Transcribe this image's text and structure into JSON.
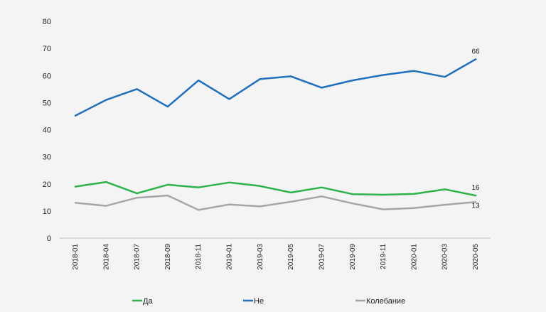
{
  "chart_data": {
    "type": "line",
    "categories": [
      "2018-01",
      "2018-04",
      "2018-07",
      "2018-09",
      "2018-11",
      "2019-01",
      "2019-03",
      "2019-05",
      "2019-07",
      "2019-09",
      "2019-11",
      "2020-01",
      "2020-03",
      "2020-05"
    ],
    "ylim": [
      0,
      80
    ],
    "yticks": [
      0,
      10,
      20,
      30,
      40,
      50,
      60,
      70,
      80
    ],
    "grid": false,
    "legend_position": "bottom",
    "series": [
      {
        "name": "Да",
        "color": "#2db34a",
        "values": [
          19,
          20.7,
          16.5,
          19.7,
          18.7,
          20.5,
          19.2,
          16.8,
          18.7,
          16.2,
          16,
          16.3,
          18,
          15.7
        ],
        "end_label": "16"
      },
      {
        "name": "Не",
        "color": "#1f6fbf",
        "values": [
          45.2,
          51,
          55,
          48.5,
          58.2,
          51.3,
          58.7,
          59.7,
          55.5,
          58.2,
          60.2,
          61.7,
          59.5,
          66
        ],
        "end_label": "66"
      },
      {
        "name": "Колебание",
        "color": "#a6a6a6",
        "values": [
          13,
          11.9,
          14.9,
          15.7,
          10.4,
          12.4,
          11.7,
          13.4,
          15.4,
          12.8,
          10.6,
          11.1,
          12.3,
          13.3
        ],
        "end_label": "13"
      }
    ]
  }
}
